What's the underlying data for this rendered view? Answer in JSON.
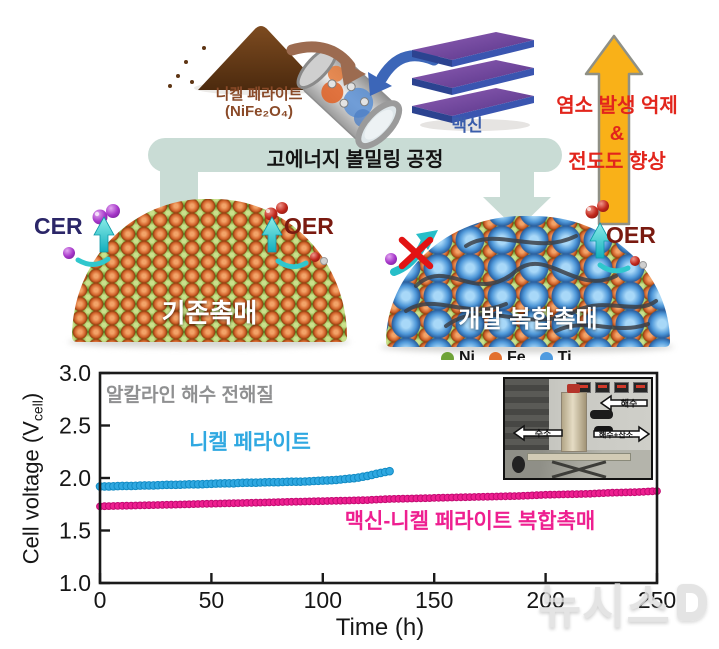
{
  "diagram": {
    "powder_label": {
      "line1": "니켈 페라이트",
      "line2": "(NiFe₂O₄)"
    },
    "mxene_label": "맥신",
    "process_label": "고에너지 볼밀링 공정",
    "benefits": {
      "line1": "염소 발생 억제",
      "amp": "&",
      "line2": "전도도 향상"
    },
    "left_catalyst": {
      "cer_label": "CER",
      "oer_label": "OER",
      "name": "기존촉매"
    },
    "right_catalyst": {
      "oer_label": "OER",
      "name": "개발 복합촉매"
    },
    "legend": [
      {
        "label": "Ni",
        "color": "#6fa338"
      },
      {
        "label": "Fe",
        "color": "#e2702f"
      },
      {
        "label": "Ti",
        "color": "#4f9be0"
      }
    ],
    "accent_colors": {
      "process_arrow": "#c9dcd5",
      "benefit_arrow": "#f9b118",
      "benefit_text": "#e2251c"
    }
  },
  "chart_data": {
    "type": "scatter",
    "title": "",
    "xlabel": "Time (h)",
    "ylabel_prefix": "Cell voltage (V",
    "ylabel_sub": "cell",
    "ylabel_suffix": ")",
    "annotation": "알칼라인 해수 전해질",
    "xlim": [
      0,
      250
    ],
    "ylim": [
      1.0,
      3.0
    ],
    "xticks": [
      0,
      50,
      100,
      150,
      200,
      250
    ],
    "yticks": [
      1.0,
      1.5,
      2.0,
      2.5,
      3.0
    ],
    "grid": false,
    "series": [
      {
        "name": "니켈 페라이트",
        "color": "#2fa8e1",
        "edge": "#128bc4",
        "x": [
          0,
          5,
          10,
          15,
          20,
          25,
          30,
          35,
          40,
          45,
          50,
          55,
          60,
          65,
          70,
          75,
          80,
          85,
          90,
          95,
          100,
          105,
          110,
          115,
          120,
          125,
          130
        ],
        "y": [
          1.92,
          1.92,
          1.925,
          1.925,
          1.93,
          1.93,
          1.935,
          1.935,
          1.94,
          1.94,
          1.945,
          1.95,
          1.95,
          1.955,
          1.955,
          1.96,
          1.96,
          1.965,
          1.965,
          1.97,
          1.975,
          1.98,
          1.99,
          2.0,
          2.02,
          2.045,
          2.065
        ]
      },
      {
        "name": "맥신-니켈 페라이트 복합촉매",
        "color": "#ee1f90",
        "edge": "#c30b72",
        "x": [
          0,
          10,
          20,
          30,
          40,
          50,
          60,
          70,
          80,
          90,
          100,
          110,
          120,
          130,
          140,
          150,
          160,
          170,
          180,
          190,
          200,
          210,
          220,
          230,
          240,
          250
        ],
        "y": [
          1.73,
          1.735,
          1.74,
          1.745,
          1.75,
          1.755,
          1.76,
          1.765,
          1.77,
          1.775,
          1.78,
          1.785,
          1.79,
          1.8,
          1.805,
          1.81,
          1.815,
          1.82,
          1.825,
          1.83,
          1.84,
          1.845,
          1.85,
          1.86,
          1.865,
          1.875
        ]
      }
    ]
  },
  "inset": {
    "arrows": [
      {
        "label": "해수",
        "dir": "left"
      },
      {
        "label": "수소",
        "dir": "left"
      },
      {
        "label": "해수+산소",
        "dir": "right"
      }
    ]
  },
  "watermark": "뉴시스"
}
